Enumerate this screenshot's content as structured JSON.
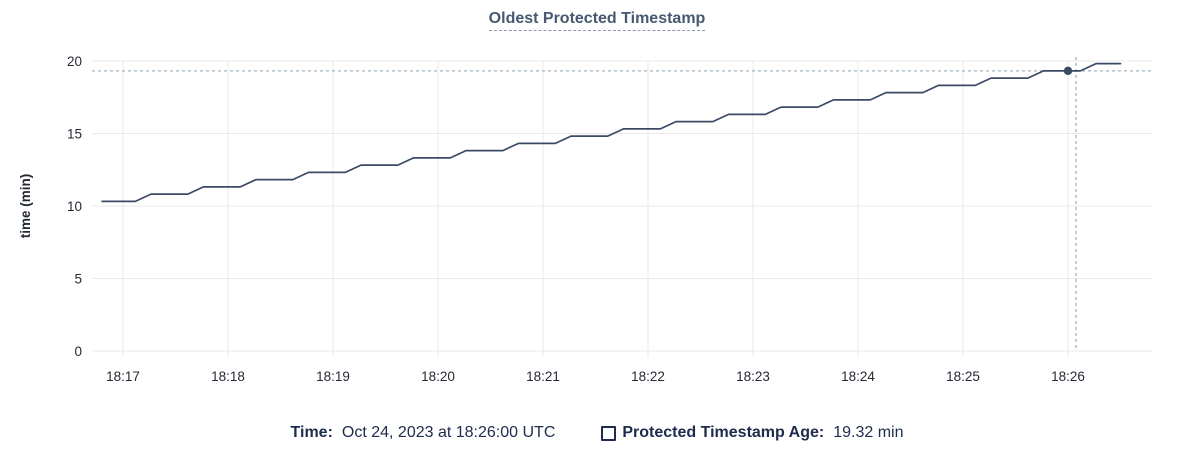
{
  "colors": {
    "background": "#ffffff",
    "title": "#475872",
    "title_underline": "#8b99b0",
    "axis_text": "#242a35",
    "grid": "#e9e9e9",
    "series": "#3b4a64",
    "crosshair": "#9fb4c1",
    "legend_text": "#1d2c4c"
  },
  "legend": {
    "time_label": "Time:",
    "time_value": "Oct 24, 2023 at 18:26:00 UTC",
    "series_label": "Protected Timestamp Age:",
    "series_value": "19.32 min"
  },
  "chart_data": {
    "type": "line",
    "title": "Oldest Protected Timestamp",
    "xlabel": "",
    "ylabel": "time (min)",
    "ylim": [
      0,
      20
    ],
    "y_ticks": [
      0,
      5,
      10,
      15,
      20
    ],
    "x_ticks": [
      {
        "label": "18:17",
        "time": "18:17:00"
      },
      {
        "label": "18:18",
        "time": "18:18:00"
      },
      {
        "label": "18:19",
        "time": "18:19:00"
      },
      {
        "label": "18:20",
        "time": "18:20:00"
      },
      {
        "label": "18:21",
        "time": "18:21:00"
      },
      {
        "label": "18:22",
        "time": "18:22:00"
      },
      {
        "label": "18:23",
        "time": "18:23:00"
      },
      {
        "label": "18:24",
        "time": "18:24:00"
      },
      {
        "label": "18:25",
        "time": "18:25:00"
      },
      {
        "label": "18:26",
        "time": "18:26:00"
      }
    ],
    "x_domain": [
      "18:16:45",
      "18:26:48"
    ],
    "grid": true,
    "legend_position": "bottom",
    "series": [
      {
        "name": "Protected Timestamp Age",
        "unit": "min",
        "color": "#3b4a64",
        "points": [
          [
            "18:16:48",
            10.32
          ],
          [
            "18:17:07",
            10.32
          ],
          [
            "18:17:16",
            10.82
          ],
          [
            "18:17:37",
            10.82
          ],
          [
            "18:17:46",
            11.32
          ],
          [
            "18:18:07",
            11.32
          ],
          [
            "18:18:16",
            11.82
          ],
          [
            "18:18:37",
            11.82
          ],
          [
            "18:18:46",
            12.32
          ],
          [
            "18:19:07",
            12.32
          ],
          [
            "18:19:16",
            12.82
          ],
          [
            "18:19:37",
            12.82
          ],
          [
            "18:19:46",
            13.32
          ],
          [
            "18:20:07",
            13.32
          ],
          [
            "18:20:16",
            13.82
          ],
          [
            "18:20:37",
            13.82
          ],
          [
            "18:20:46",
            14.32
          ],
          [
            "18:21:07",
            14.32
          ],
          [
            "18:21:16",
            14.82
          ],
          [
            "18:21:37",
            14.82
          ],
          [
            "18:21:46",
            15.32
          ],
          [
            "18:22:07",
            15.32
          ],
          [
            "18:22:16",
            15.82
          ],
          [
            "18:22:37",
            15.82
          ],
          [
            "18:22:46",
            16.32
          ],
          [
            "18:23:07",
            16.32
          ],
          [
            "18:23:16",
            16.82
          ],
          [
            "18:23:37",
            16.82
          ],
          [
            "18:23:46",
            17.32
          ],
          [
            "18:24:07",
            17.32
          ],
          [
            "18:24:16",
            17.82
          ],
          [
            "18:24:37",
            17.82
          ],
          [
            "18:24:46",
            18.32
          ],
          [
            "18:25:07",
            18.32
          ],
          [
            "18:25:16",
            18.82
          ],
          [
            "18:25:37",
            18.82
          ],
          [
            "18:25:46",
            19.32
          ],
          [
            "18:26:07",
            19.32
          ],
          [
            "18:26:16",
            19.82
          ],
          [
            "18:26:30",
            19.82
          ]
        ]
      }
    ],
    "crosshair": {
      "time": "18:26:00",
      "value": 19.32
    }
  }
}
